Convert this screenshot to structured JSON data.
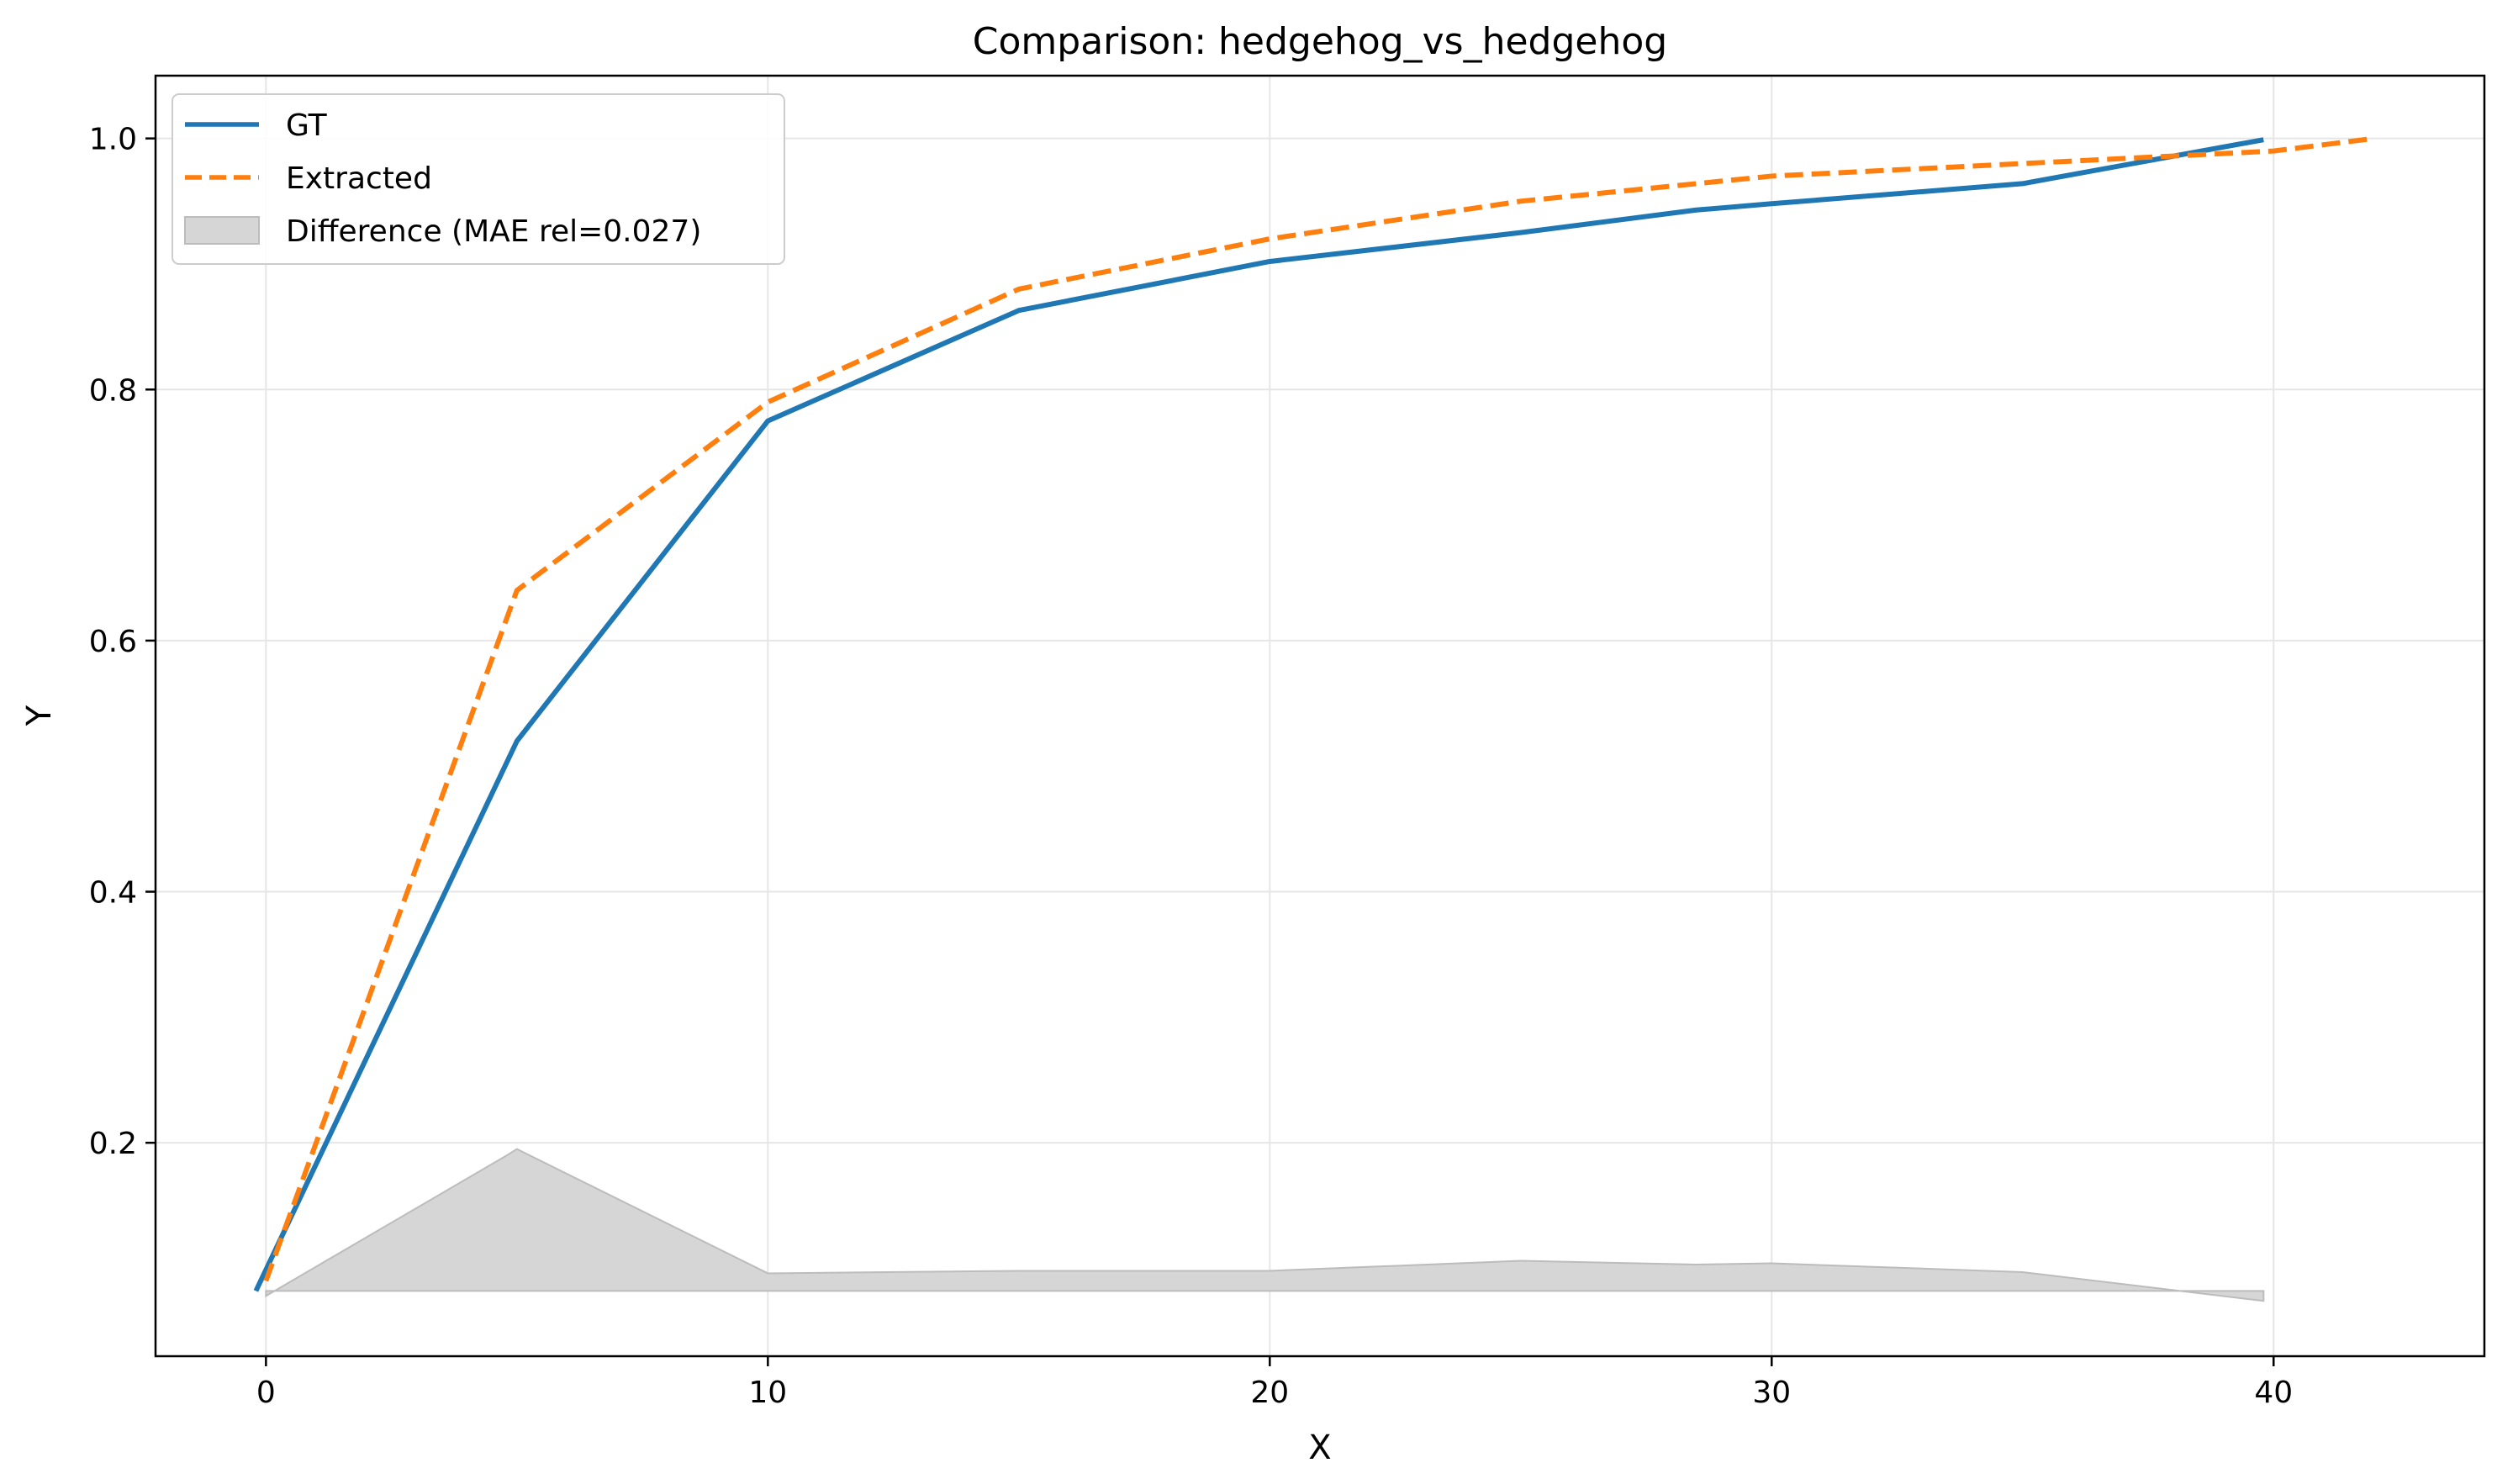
{
  "chart_data": {
    "type": "line",
    "title": "Comparison: hedgehog_vs_hedgehog",
    "xlabel": "X",
    "ylabel": "Y",
    "xlim": [
      -2.2,
      44.2
    ],
    "ylim": [
      0.03,
      1.05
    ],
    "x_ticks": [
      0,
      10,
      20,
      30,
      40
    ],
    "y_ticks": [
      0.2,
      0.4,
      0.6,
      0.8,
      1.0
    ],
    "x_tick_labels": [
      "0",
      "10",
      "20",
      "30",
      "40"
    ],
    "y_tick_labels": [
      "0.2",
      "0.4",
      "0.6",
      "0.8",
      "1.0"
    ],
    "grid": true,
    "legend_position": "upper-left",
    "series": [
      {
        "name": "GT",
        "style": "solid",
        "color": "#1f77b4",
        "x": [
          -0.2,
          5,
          10,
          15,
          20,
          25,
          28.5,
          30,
          35,
          39.8
        ],
        "y": [
          0.082,
          0.52,
          0.775,
          0.863,
          0.902,
          0.925,
          0.943,
          0.948,
          0.964,
          0.999
        ]
      },
      {
        "name": "Extracted",
        "style": "dashed",
        "color": "#ff7f0e",
        "x": [
          0,
          5,
          10,
          15,
          20,
          25,
          30,
          35,
          40,
          42
        ],
        "y": [
          0.09,
          0.64,
          0.79,
          0.88,
          0.92,
          0.95,
          0.97,
          0.98,
          0.99,
          1.0
        ]
      }
    ],
    "difference": {
      "name": "Difference (MAE rel=0.027)",
      "color": "#d6d6d6",
      "baseline": 0.082,
      "x": [
        0,
        4.8,
        5,
        10,
        15,
        20,
        25,
        28.5,
        30,
        35,
        39.8
      ],
      "y": [
        0.078,
        0.19,
        0.195,
        0.096,
        0.098,
        0.098,
        0.106,
        0.103,
        0.104,
        0.097,
        0.074
      ]
    }
  }
}
